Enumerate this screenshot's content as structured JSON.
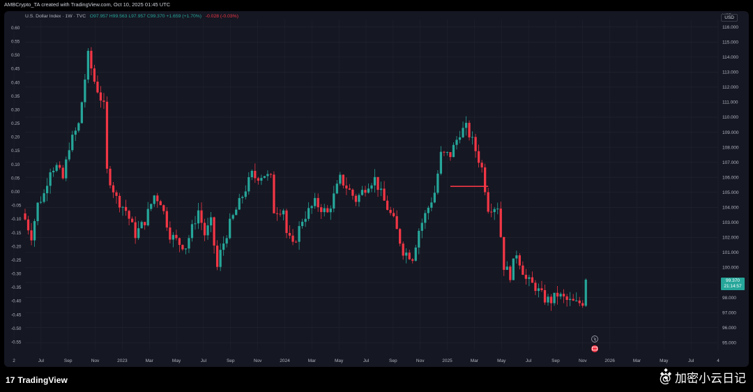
{
  "header": {
    "credit": "AMBCrypto_TA created with TradingView.com, Oct 10, 2025 01:45 UTC"
  },
  "legend": {
    "symbol": "U.S. Dollar Index · 1W · TVC",
    "open": "O97.957",
    "high": "H99.563",
    "low": "L97.957",
    "close": "C99.370",
    "change": "+1.659 (+1.70%)",
    "second_change": "-0.028 (-0.03%)"
  },
  "currency": "USD",
  "price_tag": {
    "value": "99.370",
    "countdown": "21:14:57"
  },
  "footer": {
    "brand": "TradingView",
    "logo_glyph": "17"
  },
  "watermark": {
    "text": "@ 加密小云日记",
    "icon": "binance-diamond-icon"
  },
  "colors": {
    "up": "#26a69a",
    "down": "#f23645",
    "background": "#151722",
    "grid": "#232632",
    "axis_text": "#b2b5be"
  },
  "chart_data": {
    "type": "candlestick",
    "title": "U.S. Dollar Index · 1W · TVC",
    "xlabel": "",
    "ylabel": "",
    "grid": true,
    "right_axis": {
      "label": "USD",
      "range": [
        94.5,
        116.5
      ],
      "ticks": [
        "116.000",
        "115.000",
        "114.000",
        "113.000",
        "112.000",
        "111.000",
        "110.000",
        "109.000",
        "108.000",
        "107.000",
        "106.000",
        "105.000",
        "104.000",
        "103.000",
        "102.000",
        "101.000",
        "100.000",
        "99.000",
        "98.000",
        "97.000",
        "96.000",
        "95.000"
      ]
    },
    "left_axis": {
      "range": [
        -0.58,
        0.63
      ],
      "ticks": [
        "0.60",
        "0.55",
        "0.50",
        "0.45",
        "0.40",
        "0.35",
        "0.30",
        "0.25",
        "0.20",
        "0.15",
        "0.10",
        "0.05",
        "0.00",
        "-0.05",
        "-0.10",
        "-0.15",
        "-0.20",
        "-0.25",
        "-0.30",
        "-0.35",
        "-0.40",
        "-0.45",
        "-0.50",
        "-0.55"
      ]
    },
    "x_ticks": [
      "2",
      "Jul",
      "Sep",
      "Nov",
      "2023",
      "Mar",
      "May",
      "Jul",
      "Sep",
      "Nov",
      "2024",
      "Mar",
      "May",
      "Jul",
      "Sep",
      "Nov",
      "2025",
      "Mar",
      "May",
      "Jul",
      "Sep",
      "Nov",
      "2026",
      "Mar",
      "May",
      "Jul",
      "4"
    ],
    "x_range": [
      "2022-05-09",
      "2026-07-27"
    ],
    "horizontal_line": {
      "value": 105.4,
      "from": "2024-12-09",
      "to": "2025-03-03",
      "color": "#f23645"
    },
    "close_path": [
      [
        "2022-05-09",
        103.2
      ],
      [
        "2022-05-23",
        102.1
      ],
      [
        "2022-06-06",
        104.2
      ],
      [
        "2022-06-20",
        104.9
      ],
      [
        "2022-07-04",
        106.6
      ],
      [
        "2022-07-18",
        106.7
      ],
      [
        "2022-08-01",
        105.9
      ],
      [
        "2022-08-15",
        108.1
      ],
      [
        "2022-09-05",
        109.5
      ],
      [
        "2022-09-26",
        114.1
      ],
      [
        "2022-10-10",
        112.4
      ],
      [
        "2022-10-31",
        110.7
      ],
      [
        "2022-11-07",
        106.4
      ],
      [
        "2022-11-28",
        104.6
      ],
      [
        "2022-12-19",
        103.8
      ],
      [
        "2023-01-09",
        102.2
      ],
      [
        "2023-01-30",
        103.1
      ],
      [
        "2023-02-20",
        104.8
      ],
      [
        "2023-03-06",
        104.4
      ],
      [
        "2023-03-27",
        102.2
      ],
      [
        "2023-04-17",
        101.6
      ],
      [
        "2023-05-01",
        101.4
      ],
      [
        "2023-05-29",
        103.8
      ],
      [
        "2023-06-12",
        102.2
      ],
      [
        "2023-06-26",
        103.0
      ],
      [
        "2023-07-10",
        100.0
      ],
      [
        "2023-07-17",
        101.0
      ],
      [
        "2023-08-07",
        102.9
      ],
      [
        "2023-08-28",
        104.3
      ],
      [
        "2023-09-25",
        106.2
      ],
      [
        "2023-10-02",
        106.0
      ],
      [
        "2023-10-23",
        106.2
      ],
      [
        "2023-11-06",
        105.9
      ],
      [
        "2023-11-13",
        103.8
      ],
      [
        "2023-12-04",
        103.9
      ],
      [
        "2023-12-11",
        102.3
      ],
      [
        "2023-12-25",
        101.4
      ],
      [
        "2024-01-15",
        103.2
      ],
      [
        "2024-02-12",
        104.3
      ],
      [
        "2024-03-11",
        103.6
      ],
      [
        "2024-04-08",
        105.9
      ],
      [
        "2024-04-29",
        105.1
      ],
      [
        "2024-05-13",
        104.5
      ],
      [
        "2024-06-10",
        105.6
      ],
      [
        "2024-06-24",
        105.9
      ],
      [
        "2024-07-15",
        104.4
      ],
      [
        "2024-08-05",
        103.1
      ],
      [
        "2024-08-26",
        101.1
      ],
      [
        "2024-09-16",
        100.7
      ],
      [
        "2024-09-30",
        102.5
      ],
      [
        "2024-10-14",
        103.5
      ],
      [
        "2024-11-04",
        105.0
      ],
      [
        "2024-11-18",
        107.5
      ],
      [
        "2024-12-09",
        107.5
      ],
      [
        "2024-12-30",
        109.0
      ],
      [
        "2025-01-13",
        109.3
      ],
      [
        "2025-01-27",
        108.4
      ],
      [
        "2025-02-17",
        106.6
      ],
      [
        "2025-03-03",
        104.0
      ],
      [
        "2025-03-24",
        104.1
      ],
      [
        "2025-04-07",
        100.1
      ],
      [
        "2025-04-21",
        99.5
      ],
      [
        "2025-05-05",
        101.0
      ],
      [
        "2025-05-26",
        99.2
      ],
      [
        "2025-06-16",
        98.7
      ],
      [
        "2025-07-07",
        97.9
      ],
      [
        "2025-07-21",
        97.8
      ],
      [
        "2025-08-04",
        98.2
      ],
      [
        "2025-08-25",
        97.8
      ],
      [
        "2025-09-15",
        97.6
      ],
      [
        "2025-09-29",
        97.7
      ],
      [
        "2025-10-06",
        99.37
      ]
    ]
  }
}
